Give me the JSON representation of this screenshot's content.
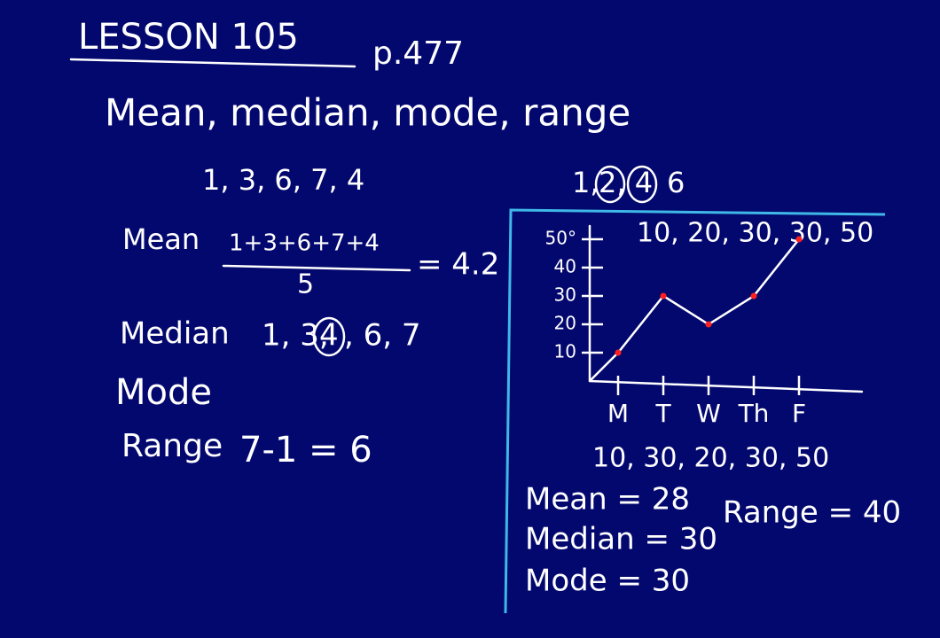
{
  "header": {
    "title": "LESSON 105",
    "page": "p.477"
  },
  "topic": "Mean, median, mode, range",
  "left": {
    "data": "1, 3, 6, 7, 4",
    "mean": {
      "label": "Mean",
      "numerator": "1+3+6+7+4",
      "denominator": "5",
      "result": "= 4.2"
    },
    "median": {
      "label": "Median",
      "before": "1, 3,",
      "middle": "4",
      "after": ", 6, 7"
    },
    "mode": {
      "label": "Mode"
    },
    "range": {
      "label": "Range",
      "calc": "7-1 = 6"
    }
  },
  "right": {
    "before": "1,",
    "middle": "2, 4",
    "after": "6"
  },
  "chart_data": {
    "type": "line",
    "categories": [
      "M",
      "T",
      "W",
      "Th",
      "F"
    ],
    "values": [
      10,
      30,
      20,
      30,
      50
    ],
    "color": "#ffffff",
    "point_color": "#ff2020",
    "ylim": [
      0,
      55
    ],
    "yticks": [
      10,
      20,
      30,
      40,
      {
        "value": 50,
        "label": "50°"
      }
    ],
    "annotations": {
      "sorted": "10, 20, 30, 30, 50",
      "raw": "10, 30, 20, 30, 50",
      "mean": "Mean = 28",
      "median": "Median = 30",
      "mode": "Mode = 30",
      "range": "Range = 40"
    }
  }
}
